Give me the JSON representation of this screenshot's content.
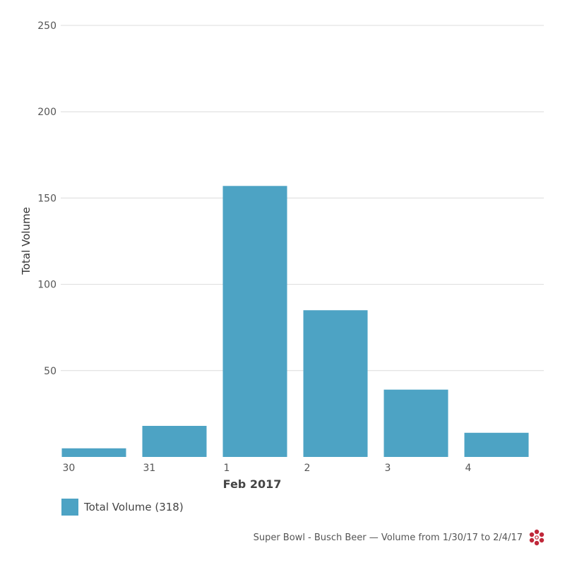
{
  "chart_data": {
    "type": "bar",
    "categories": [
      "30",
      "31",
      "1",
      "2",
      "3",
      "4"
    ],
    "group_label": "Feb 2017",
    "series": [
      {
        "name": "Total Volume",
        "values": [
          5,
          18,
          157,
          85,
          39,
          14
        ]
      }
    ],
    "ylabel": "Total Volume",
    "ylim": [
      0,
      250
    ],
    "yticks": [
      50,
      100,
      150,
      200,
      250
    ],
    "grid": true,
    "color": "#4da3c4",
    "legend": {
      "label": "Total Volume (318)",
      "placement": "bottom-left"
    }
  },
  "footer": {
    "caption": "Super Bowl - Busch Beer — Volume from 1/30/17 to 2/4/17",
    "logo_icon": "dots-flower-icon",
    "logo_color": "#c0283a"
  }
}
